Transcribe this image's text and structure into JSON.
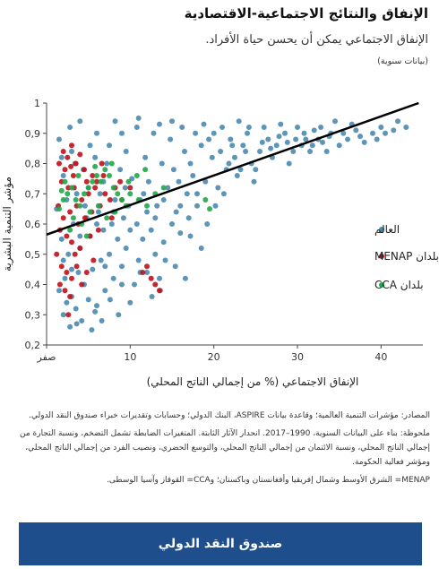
{
  "header": {
    "title": "الإنفاق والنتائج الاجتماعية-الاقتصادية",
    "subtitle": "الإنفاق الاجتماعي يمكن أن يحسن حياة الأفراد.",
    "note": "(بيانات سنوية)"
  },
  "footnotes": {
    "sources": "المصادر: مؤشرات التنمية العالمية؛ وقاعدة بيانات ASPIRE، البنك الدولي؛ وحسابات وتقديرات خبراء صندوق النقد الدولي.",
    "note": "ملحوظة: بناء على البيانات السنوية، 1990–2017. انحدار الآثار الثابتة. المتغيرات الضابطة تشمل التضخم، ونسبة التجارة من إجمالي الناتج المحلي، ونسبة الائتمان من إجمالي الناتج المحلي، والتوسع الحضري، ونصيب الفرد من إجمالي الناتج المحلي، ومؤشر فعالية الحكومة.",
    "abbrev": "MENAP= الشرق الأوسط وشمال إفريقيا وأفغانستان وباكستان؛ وCCA= القوقاز وآسيا الوسطى."
  },
  "banner": {
    "label": "صندوق النقد الدولي"
  },
  "chart_data": {
    "type": "scatter",
    "xlabel": "الإنفاق الاجتماعي (% من إجمالي الناتج المحلي)",
    "ylabel": "مؤشر التنمية البشرية",
    "xlim": [
      0,
      45
    ],
    "ylim": [
      0.2,
      1.0
    ],
    "x_ticks": [
      {
        "value": 0,
        "label": "صفر"
      },
      {
        "value": 10,
        "label": "10"
      },
      {
        "value": 20,
        "label": "20"
      },
      {
        "value": 30,
        "label": "30"
      },
      {
        "value": 40,
        "label": "40"
      }
    ],
    "y_ticks": [
      {
        "value": 0.2,
        "label": "0,2"
      },
      {
        "value": 0.3,
        "label": "0,3"
      },
      {
        "value": 0.4,
        "label": "0,4"
      },
      {
        "value": 0.5,
        "label": "0,5"
      },
      {
        "value": 0.6,
        "label": "0,6"
      },
      {
        "value": 0.7,
        "label": "0,7"
      },
      {
        "value": 0.8,
        "label": "0,8"
      },
      {
        "value": 0.9,
        "label": "0,9"
      },
      {
        "value": 1.0,
        "label": "1"
      }
    ],
    "legend_position": "right",
    "grid": false,
    "trend_line": {
      "x": [
        0,
        44.5
      ],
      "y": [
        0.565,
        1.0
      ],
      "color": "#000000"
    },
    "series": [
      {
        "name": "العالم",
        "color": "#4a8ab0",
        "points": [
          [
            2.0,
            0.3
          ],
          [
            2.8,
            0.26
          ],
          [
            3.5,
            0.32
          ],
          [
            4.2,
            0.28
          ],
          [
            5.0,
            0.35
          ],
          [
            1.5,
            0.38
          ],
          [
            2.2,
            0.42
          ],
          [
            3.0,
            0.36
          ],
          [
            4.5,
            0.4
          ],
          [
            6.0,
            0.33
          ],
          [
            5.5,
            0.45
          ],
          [
            7.0,
            0.38
          ],
          [
            8.0,
            0.42
          ],
          [
            6.5,
            0.48
          ],
          [
            3.8,
            0.44
          ],
          [
            2.6,
            0.5
          ],
          [
            1.8,
            0.55
          ],
          [
            4.0,
            0.52
          ],
          [
            5.2,
            0.56
          ],
          [
            7.5,
            0.5
          ],
          [
            9.0,
            0.46
          ],
          [
            10.5,
            0.4
          ],
          [
            11.0,
            0.48
          ],
          [
            12.0,
            0.44
          ],
          [
            13.5,
            0.42
          ],
          [
            9.5,
            0.52
          ],
          [
            8.5,
            0.55
          ],
          [
            6.8,
            0.58
          ],
          [
            11.5,
            0.55
          ],
          [
            13.0,
            0.5
          ],
          [
            3.2,
            0.6
          ],
          [
            4.8,
            0.62
          ],
          [
            6.2,
            0.64
          ],
          [
            7.8,
            0.6
          ],
          [
            9.2,
            0.62
          ],
          [
            10.8,
            0.6
          ],
          [
            12.5,
            0.58
          ],
          [
            14.0,
            0.54
          ],
          [
            15.0,
            0.6
          ],
          [
            16.0,
            0.57
          ],
          [
            1.2,
            0.65
          ],
          [
            2.4,
            0.68
          ],
          [
            3.6,
            0.7
          ],
          [
            5.0,
            0.72
          ],
          [
            6.4,
            0.7
          ],
          [
            8.2,
            0.68
          ],
          [
            9.8,
            0.66
          ],
          [
            11.2,
            0.68
          ],
          [
            13.2,
            0.66
          ],
          [
            15.5,
            0.64
          ],
          [
            17.0,
            0.62
          ],
          [
            18.0,
            0.66
          ],
          [
            16.8,
            0.7
          ],
          [
            14.5,
            0.72
          ],
          [
            12.2,
            0.74
          ],
          [
            10.2,
            0.75
          ],
          [
            8.8,
            0.78
          ],
          [
            7.2,
            0.8
          ],
          [
            5.8,
            0.82
          ],
          [
            4.4,
            0.78
          ],
          [
            2.0,
            0.76
          ],
          [
            3.0,
            0.84
          ],
          [
            1.5,
            0.88
          ],
          [
            2.8,
            0.92
          ],
          [
            4.0,
            0.94
          ],
          [
            6.0,
            0.9
          ],
          [
            7.5,
            0.86
          ],
          [
            9.5,
            0.84
          ],
          [
            11.8,
            0.82
          ],
          [
            13.8,
            0.8
          ],
          [
            15.2,
            0.78
          ],
          [
            17.5,
            0.76
          ],
          [
            19.0,
            0.74
          ],
          [
            20.5,
            0.72
          ],
          [
            21.5,
            0.78
          ],
          [
            19.8,
            0.82
          ],
          [
            18.5,
            0.86
          ],
          [
            16.5,
            0.84
          ],
          [
            14.8,
            0.88
          ],
          [
            12.8,
            0.9
          ],
          [
            10.8,
            0.92
          ],
          [
            8.2,
            0.94
          ],
          [
            22.5,
            0.82
          ],
          [
            23.5,
            0.86
          ],
          [
            24.5,
            0.8
          ],
          [
            25.5,
            0.84
          ],
          [
            26.5,
            0.88
          ],
          [
            27.5,
            0.86
          ],
          [
            28.5,
            0.9
          ],
          [
            29.5,
            0.84
          ],
          [
            22.0,
            0.88
          ],
          [
            24.0,
            0.9
          ],
          [
            26.0,
            0.92
          ],
          [
            28.0,
            0.93
          ],
          [
            30.0,
            0.92
          ],
          [
            31.0,
            0.88
          ],
          [
            32.0,
            0.91
          ],
          [
            33.0,
            0.87
          ],
          [
            34.0,
            0.9
          ],
          [
            35.0,
            0.86
          ],
          [
            25.0,
            0.78
          ],
          [
            27.0,
            0.82
          ],
          [
            29.0,
            0.8
          ],
          [
            30.5,
            0.86
          ],
          [
            31.5,
            0.84
          ],
          [
            32.5,
            0.88
          ],
          [
            33.5,
            0.84
          ],
          [
            36.0,
            0.88
          ],
          [
            37.0,
            0.91
          ],
          [
            38.0,
            0.87
          ],
          [
            39.0,
            0.9
          ],
          [
            40.0,
            0.92
          ],
          [
            41.5,
            0.91
          ],
          [
            43.0,
            0.92
          ],
          [
            42.0,
            0.94
          ],
          [
            36.5,
            0.93
          ],
          [
            34.5,
            0.94
          ],
          [
            21.0,
            0.92
          ],
          [
            23.0,
            0.94
          ],
          [
            20.0,
            0.9
          ],
          [
            18.8,
            0.93
          ],
          [
            17.8,
            0.9
          ],
          [
            16.2,
            0.92
          ],
          [
            15.0,
            0.94
          ],
          [
            13.5,
            0.93
          ],
          [
            11.0,
            0.95
          ],
          [
            9.0,
            0.9
          ],
          [
            5.2,
            0.86
          ],
          [
            3.4,
            0.8
          ],
          [
            1.8,
            0.82
          ],
          [
            22.8,
            0.76
          ],
          [
            24.8,
            0.74
          ],
          [
            21.2,
            0.7
          ],
          [
            20.2,
            0.66
          ],
          [
            19.2,
            0.6
          ],
          [
            17.2,
            0.56
          ],
          [
            18.5,
            0.52
          ],
          [
            14.2,
            0.48
          ],
          [
            12.6,
            0.36
          ],
          [
            10.0,
            0.34
          ],
          [
            8.6,
            0.3
          ],
          [
            6.6,
            0.28
          ],
          [
            5.4,
            0.25
          ],
          [
            3.0,
            0.45
          ],
          [
            2.0,
            0.48
          ],
          [
            4.6,
            0.66
          ],
          [
            6.8,
            0.74
          ],
          [
            9.4,
            0.72
          ],
          [
            11.6,
            0.7
          ],
          [
            13.0,
            0.62
          ],
          [
            15.8,
            0.74
          ],
          [
            17.2,
            0.8
          ],
          [
            18.0,
            0.7
          ],
          [
            16.0,
            0.66
          ],
          [
            14.0,
            0.68
          ],
          [
            12.0,
            0.64
          ],
          [
            10.0,
            0.58
          ],
          [
            8.0,
            0.64
          ],
          [
            6.0,
            0.6
          ],
          [
            4.0,
            0.56
          ],
          [
            7.0,
            0.46
          ],
          [
            9.0,
            0.4
          ],
          [
            11.2,
            0.44
          ],
          [
            13.6,
            0.38
          ],
          [
            15.4,
            0.46
          ],
          [
            16.6,
            0.42
          ],
          [
            2.4,
            0.34
          ],
          [
            3.6,
            0.27
          ],
          [
            5.8,
            0.31
          ],
          [
            7.6,
            0.35
          ],
          [
            26.8,
            0.85
          ],
          [
            28.8,
            0.87
          ],
          [
            30.8,
            0.9
          ],
          [
            32.8,
            0.92
          ],
          [
            29.8,
            0.88
          ],
          [
            27.8,
            0.89
          ],
          [
            25.8,
            0.87
          ],
          [
            23.8,
            0.84
          ],
          [
            35.5,
            0.9
          ],
          [
            37.5,
            0.89
          ],
          [
            24.2,
            0.92
          ],
          [
            22.2,
            0.86
          ],
          [
            20.8,
            0.84
          ],
          [
            31.8,
            0.86
          ],
          [
            33.8,
            0.89
          ],
          [
            39.5,
            0.88
          ],
          [
            40.5,
            0.9
          ],
          [
            19.4,
            0.88
          ],
          [
            21.8,
            0.8
          ],
          [
            23.2,
            0.78
          ]
        ]
      },
      {
        "name": "بلدان MENAP",
        "color": "#c0101a",
        "points": [
          [
            1.5,
            0.8
          ],
          [
            2.0,
            0.84
          ],
          [
            2.5,
            0.82
          ],
          [
            3.0,
            0.86
          ],
          [
            3.5,
            0.8
          ],
          [
            4.0,
            0.83
          ],
          [
            2.2,
            0.78
          ],
          [
            1.8,
            0.74
          ],
          [
            2.6,
            0.72
          ],
          [
            3.2,
            0.76
          ],
          [
            4.5,
            0.78
          ],
          [
            5.5,
            0.76
          ],
          [
            6.0,
            0.74
          ],
          [
            5.0,
            0.7
          ],
          [
            4.2,
            0.68
          ],
          [
            3.6,
            0.66
          ],
          [
            2.8,
            0.64
          ],
          [
            2.0,
            0.62
          ],
          [
            1.6,
            0.58
          ],
          [
            2.4,
            0.56
          ],
          [
            3.0,
            0.54
          ],
          [
            3.8,
            0.6
          ],
          [
            4.6,
            0.62
          ],
          [
            5.4,
            0.64
          ],
          [
            6.4,
            0.66
          ],
          [
            7.0,
            0.7
          ],
          [
            7.6,
            0.68
          ],
          [
            8.2,
            0.72
          ],
          [
            6.8,
            0.76
          ],
          [
            8.8,
            0.74
          ],
          [
            1.2,
            0.5
          ],
          [
            1.8,
            0.46
          ],
          [
            2.4,
            0.44
          ],
          [
            3.0,
            0.42
          ],
          [
            3.6,
            0.46
          ],
          [
            4.2,
            0.4
          ],
          [
            2.2,
            0.38
          ],
          [
            2.8,
            0.36
          ],
          [
            1.6,
            0.4
          ],
          [
            4.8,
            0.44
          ],
          [
            5.6,
            0.48
          ],
          [
            3.4,
            0.5
          ],
          [
            4.0,
            0.52
          ],
          [
            2.6,
            0.3
          ],
          [
            5.2,
            0.56
          ],
          [
            12.5,
            0.42
          ],
          [
            13.0,
            0.4
          ],
          [
            13.5,
            0.38
          ],
          [
            11.5,
            0.44
          ],
          [
            12.0,
            0.46
          ],
          [
            10.0,
            0.72
          ],
          [
            9.0,
            0.68
          ],
          [
            7.8,
            0.62
          ],
          [
            6.2,
            0.58
          ],
          [
            1.4,
            0.66
          ],
          [
            3.3,
            0.72
          ],
          [
            4.8,
            0.74
          ],
          [
            2.9,
            0.79
          ],
          [
            6.6,
            0.8
          ],
          [
            5.8,
            0.72
          ]
        ]
      },
      {
        "name": "بلدان CCA",
        "color": "#1fa84a",
        "points": [
          [
            1.5,
            0.65
          ],
          [
            2.0,
            0.68
          ],
          [
            2.5,
            0.7
          ],
          [
            3.0,
            0.72
          ],
          [
            3.5,
            0.68
          ],
          [
            4.0,
            0.66
          ],
          [
            4.5,
            0.7
          ],
          [
            5.0,
            0.72
          ],
          [
            5.5,
            0.74
          ],
          [
            6.0,
            0.76
          ],
          [
            6.5,
            0.74
          ],
          [
            7.0,
            0.78
          ],
          [
            7.5,
            0.76
          ],
          [
            8.0,
            0.72
          ],
          [
            8.5,
            0.7
          ],
          [
            9.0,
            0.68
          ],
          [
            9.5,
            0.66
          ],
          [
            10.0,
            0.7
          ],
          [
            11.0,
            0.68
          ],
          [
            12.0,
            0.66
          ],
          [
            13.0,
            0.7
          ],
          [
            14.0,
            0.72
          ],
          [
            3.2,
            0.62
          ],
          [
            4.2,
            0.6
          ],
          [
            5.2,
            0.64
          ],
          [
            6.2,
            0.66
          ],
          [
            7.2,
            0.62
          ],
          [
            8.2,
            0.64
          ],
          [
            2.8,
            0.58
          ],
          [
            4.8,
            0.56
          ],
          [
            19.0,
            0.68
          ],
          [
            19.5,
            0.65
          ],
          [
            9.8,
            0.74
          ],
          [
            10.8,
            0.76
          ],
          [
            11.8,
            0.78
          ],
          [
            5.8,
            0.79
          ],
          [
            3.8,
            0.76
          ],
          [
            2.2,
            0.74
          ],
          [
            1.8,
            0.71
          ],
          [
            7.8,
            0.8
          ]
        ]
      }
    ]
  }
}
